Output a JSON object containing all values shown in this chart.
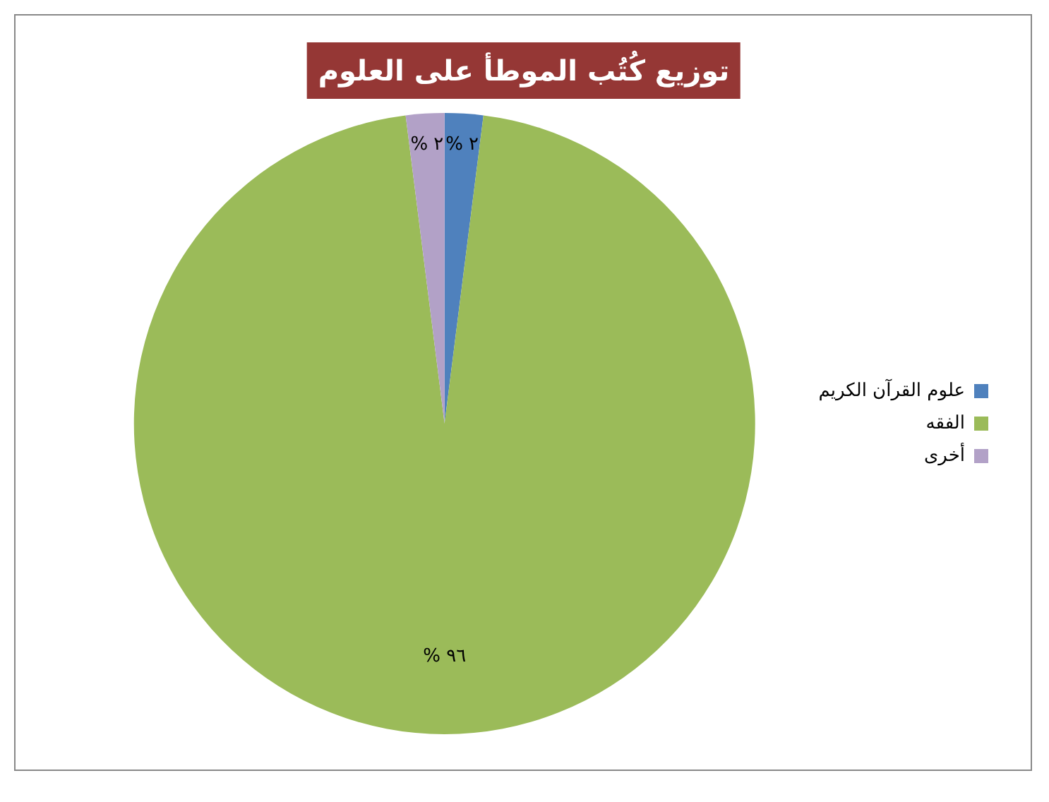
{
  "chart_data": {
    "type": "pie",
    "title": "توزيع كُتُب الموطأ على العلوم",
    "categories": [
      "علوم القرآن الكريم",
      "الفقه",
      "أخرى"
    ],
    "values": [
      2,
      96,
      2
    ],
    "colors": [
      "#4f81bd",
      "#9bbb59",
      "#b2a1c7"
    ],
    "value_labels": [
      "٢ %",
      "٩٦ %",
      "٢ %"
    ],
    "legend": "right"
  }
}
